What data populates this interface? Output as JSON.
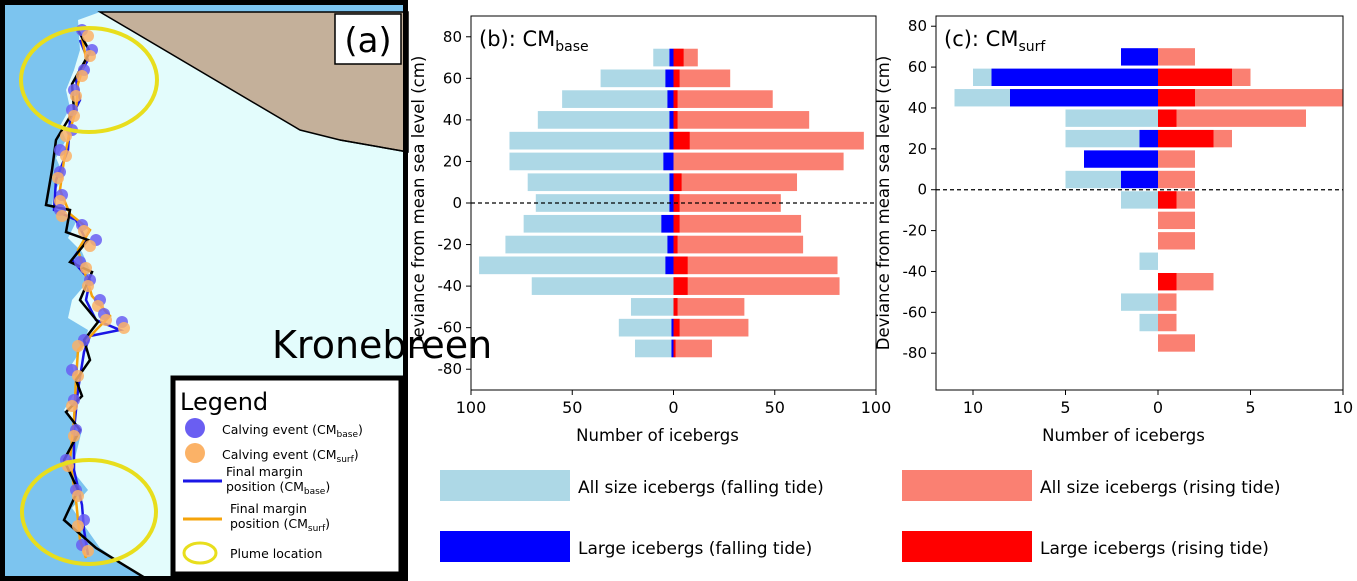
{
  "panel_a": {
    "label": "(a)",
    "glacier_name": "Kronebreen",
    "colors": {
      "sea": "#7cc4ef",
      "glacier": "#e3fcfc",
      "land": "#c4b09a",
      "calving_base": "#6a5ef2",
      "calving_surf": "#fbb267",
      "margin_base": "#1a16e6",
      "margin_surf": "#f5a30a",
      "plume": "#e8de1d"
    },
    "legend": {
      "title": "Legend",
      "items": [
        {
          "text": "Calving event (CM",
          "sub": "base",
          "tail": ")"
        },
        {
          "text": "Calving event (CM",
          "sub": "surf",
          "tail": ")"
        },
        {
          "line1": "Final margin",
          "line2": "position (CM",
          "sub": "base",
          "tail": ")"
        },
        {
          "line1": "Final margin",
          "line2": "position (CM",
          "sub": "surf",
          "tail": ")"
        },
        {
          "text": "Plume location"
        }
      ]
    }
  },
  "chart_data": [
    {
      "type": "bar",
      "orientation": "horizontal-back-to-back",
      "title": "(b): CM",
      "title_sub": "base",
      "xlabel": "Number of icebergs",
      "ylabel": "Deviance from mean sea level (cm)",
      "x_ticks": [
        100,
        50,
        0,
        50,
        100
      ],
      "xlim": [
        -100,
        100
      ],
      "ylim": [
        -90,
        90
      ],
      "y_ticks": [
        80,
        60,
        40,
        20,
        0,
        -20,
        -40,
        -60,
        -80
      ],
      "zero_line": true,
      "categories": [
        70,
        60,
        50,
        40,
        30,
        20,
        10,
        0,
        -10,
        -20,
        -30,
        -40,
        -50,
        -60,
        -70,
        -80
      ],
      "series": [
        {
          "name": "All size icebergs (falling tide)",
          "color": "#add8e6",
          "values": [
            10,
            36,
            55,
            67,
            81,
            81,
            72,
            68,
            74,
            83,
            96,
            70,
            21,
            27,
            19,
            null
          ]
        },
        {
          "name": "Large icebergs (falling tide)",
          "color": "#0000ff",
          "values": [
            2,
            4,
            3,
            2,
            2,
            5,
            2,
            2,
            6,
            3,
            4,
            0,
            0,
            1,
            1,
            null
          ]
        },
        {
          "name": "All size icebergs (rising tide)",
          "color": "#fa8072",
          "values": [
            12,
            28,
            49,
            67,
            94,
            84,
            61,
            53,
            63,
            64,
            81,
            82,
            35,
            37,
            19,
            null
          ]
        },
        {
          "name": "Large icebergs (rising tide)",
          "color": "#ff0000",
          "values": [
            5,
            3,
            2,
            2,
            8,
            0,
            4,
            3,
            3,
            2,
            7,
            7,
            2,
            3,
            1,
            null
          ]
        }
      ]
    },
    {
      "type": "bar",
      "orientation": "horizontal-back-to-back",
      "title": "(c): CM",
      "title_sub": "surf",
      "xlabel": "Number of icebergs",
      "ylabel": "Deviance from mean sea level (cm)",
      "x_ticks": [
        10,
        5,
        0,
        5,
        10
      ],
      "xlim": [
        -12,
        10
      ],
      "ylim": [
        -98,
        85
      ],
      "y_ticks": [
        80,
        60,
        40,
        20,
        0,
        -20,
        -40,
        -60,
        -80
      ],
      "zero_line": true,
      "categories": [
        65,
        55,
        45,
        35,
        25,
        15,
        5,
        -5,
        -15,
        -25,
        -35,
        -45,
        -55,
        -65,
        -75
      ],
      "series": [
        {
          "name": "All size icebergs (falling tide)",
          "color": "#add8e6",
          "values": [
            0,
            10,
            11,
            5,
            5,
            0,
            5,
            2,
            0,
            0,
            1,
            0,
            2,
            1,
            0
          ]
        },
        {
          "name": "Large icebergs (falling tide)",
          "color": "#0000ff",
          "values": [
            2,
            9,
            8,
            0,
            1,
            4,
            2,
            0,
            0,
            0,
            0,
            0,
            0,
            0,
            0
          ]
        },
        {
          "name": "All size icebergs (rising tide)",
          "color": "#fa8072",
          "values": [
            2,
            5,
            10,
            8,
            4,
            2,
            2,
            2,
            2,
            2,
            0,
            3,
            1,
            1,
            2
          ]
        },
        {
          "name": "Large icebergs (rising tide)",
          "color": "#ff0000",
          "values": [
            0,
            4,
            2,
            1,
            3,
            0,
            0,
            1,
            0,
            0,
            0,
            1,
            0,
            0,
            0
          ]
        }
      ]
    }
  ],
  "legend": [
    {
      "label": "All size icebergs (falling tide)",
      "color": "#add8e6"
    },
    {
      "label": "All size icebergs (rising tide)",
      "color": "#fa8072"
    },
    {
      "label": "Large icebergs (falling tide)",
      "color": "#0000ff"
    },
    {
      "label": "Large icebergs (rising tide)",
      "color": "#ff0000"
    }
  ]
}
